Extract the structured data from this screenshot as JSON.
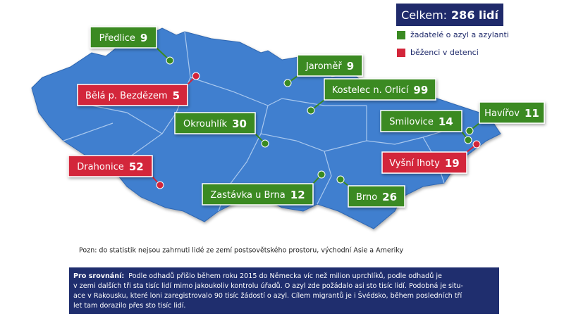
{
  "total": {
    "label": "Celkem:",
    "value": "286 lidí"
  },
  "legend": [
    {
      "label": "žadatelé o azyl a azylanti",
      "color": "#3a8a22",
      "locations": [
        {
          "name": "Předlice",
          "value": "9"
        },
        {
          "name": "Jaroměř",
          "value": "9"
        },
        {
          "name": "Kostelec n. Orlicí",
          "value": "99"
        },
        {
          "name": "Okrouhlík",
          "value": "30"
        },
        {
          "name": "Smilovice",
          "value": "14"
        },
        {
          "name": "Havířov",
          "value": "11"
        },
        {
          "name": "Zastávka u Brna",
          "value": "12"
        },
        {
          "name": "Brno",
          "value": "26"
        }
      ]
    },
    {
      "label": "běženci v detenci",
      "color": "#d3263a",
      "locations": [
        {
          "name": "Bělá p. Bezdězem",
          "value": "5"
        },
        {
          "name": "Drahonice",
          "value": "52"
        },
        {
          "name": "Vyšní lhoty",
          "value": "19"
        }
      ]
    }
  ],
  "note": "Pozn: do statistik nejsou zahrnuti lidé ze zemí postsovětského prostoru, východní Asie a Ameriky",
  "comparison": {
    "label": "Pro srovnání:",
    "lines": [
      "Podle odhadů přišlo během roku 2015 do Německa víc než milion uprchlíků, podle odhadů je",
      "v zemi dalších tři sta tisíc lidí mimo jakoukoliv kontrolu úřadů. O azyl zde požádalo asi sto tisíc lidí. Podobná je situ-",
      "ace v Rakousku, které loni zaregistrovalo 90 tisíc žádostí o azyl. Cílem migrantů je i Švédsko, během posledních tří",
      "let tam dorazilo přes sto tisíc lidí."
    ]
  }
}
